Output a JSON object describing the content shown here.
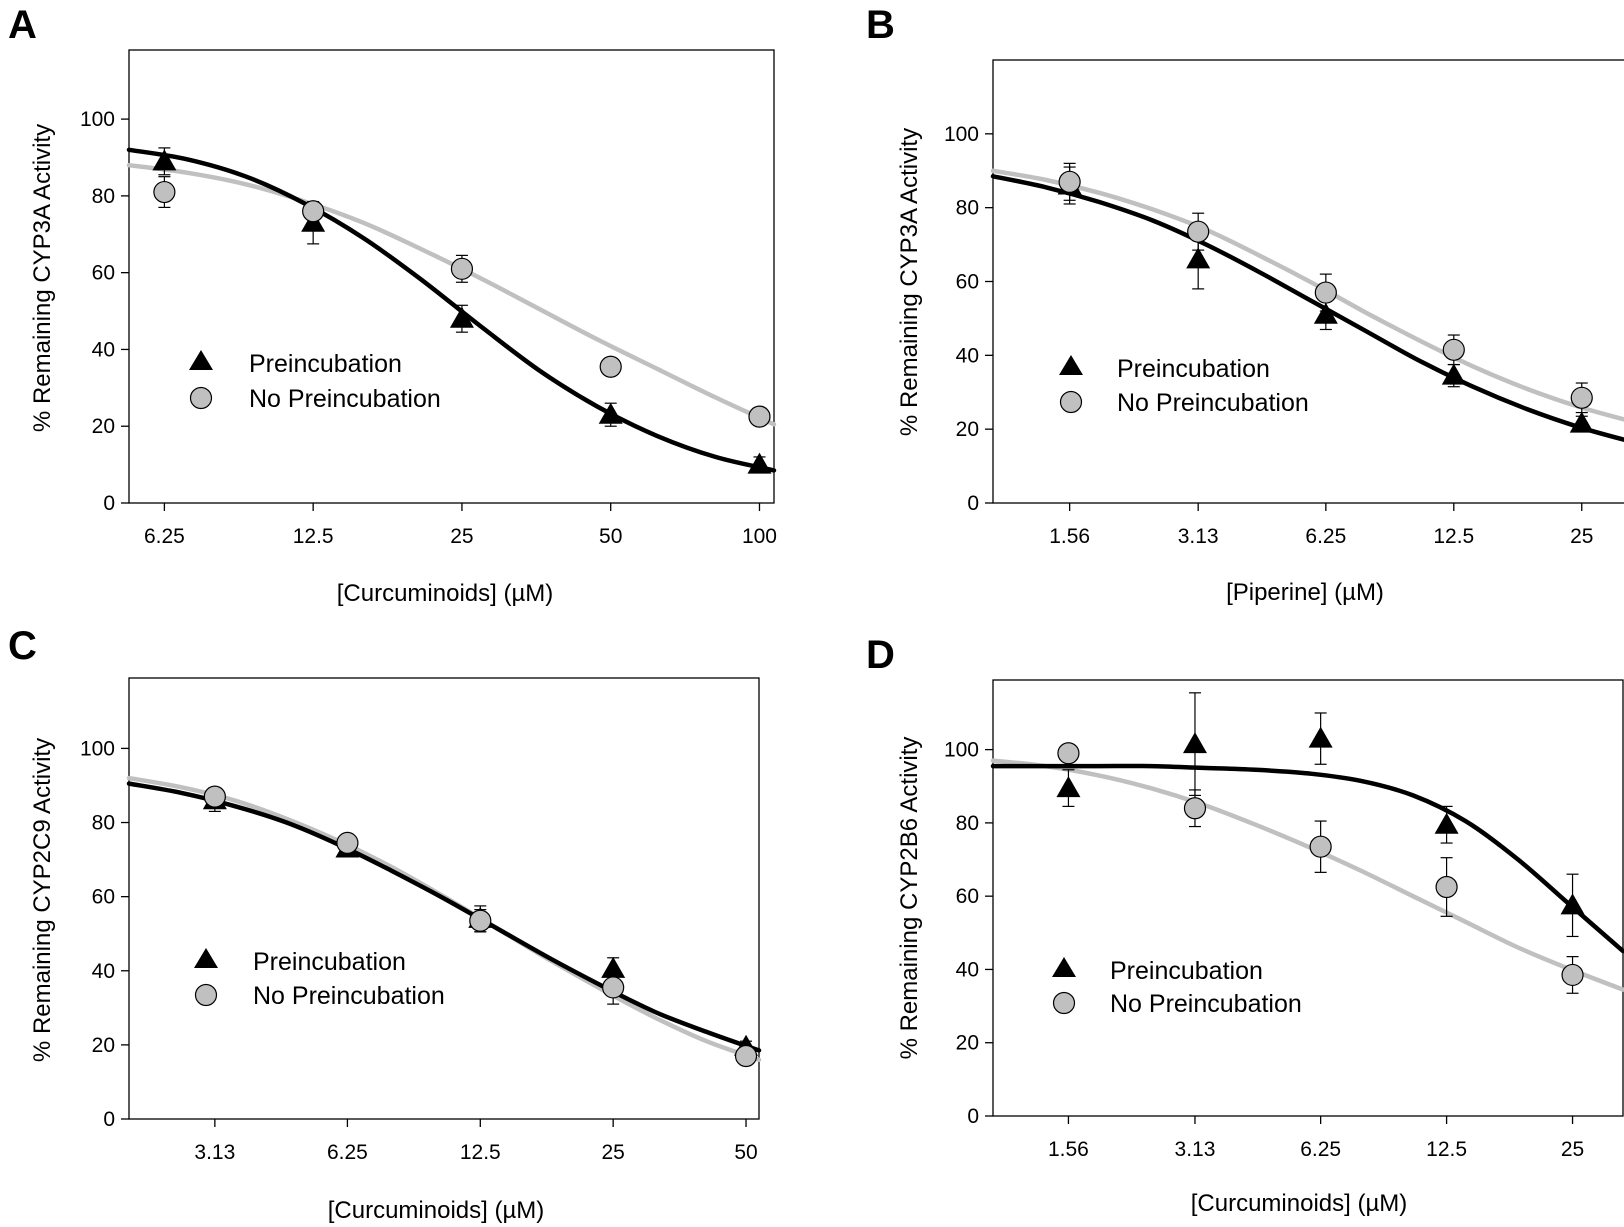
{
  "chart_data": [
    {
      "panel": "A",
      "type": "scatter",
      "xlabel": "[Curcuminoids] (µM)",
      "ylabel": "% Remaining CYP3A Activity",
      "x_scale": "log2",
      "x_ticks": [
        "6.25",
        "12.5",
        "25",
        "50",
        "100"
      ],
      "x_range": [
        5.3,
        107
      ],
      "ylim": [
        0,
        118
      ],
      "y_ticks": [
        0,
        20,
        40,
        60,
        80,
        100
      ],
      "legend_position": "center-left",
      "series": [
        {
          "name": "Preincubation",
          "marker": "triangle",
          "color": "#000000",
          "x": [
            6.25,
            12.5,
            25,
            50,
            100
          ],
          "y": [
            89,
            73,
            48,
            23,
            10
          ],
          "err": [
            3.5,
            5.5,
            3.5,
            3,
            2
          ],
          "fit": [
            92,
            89.5,
            85,
            78,
            69,
            58,
            46,
            34.5,
            25,
            17.5,
            12,
            8.5
          ]
        },
        {
          "name": "No Preincubation",
          "marker": "circle",
          "color": "#c0c0c0",
          "x": [
            6.25,
            12.5,
            25,
            50,
            100
          ],
          "y": [
            81,
            76,
            61,
            35.5,
            22.5
          ],
          "err": [
            4,
            2,
            3.5,
            1.5,
            1.5
          ],
          "fit": [
            88,
            86,
            83,
            78.5,
            73,
            66,
            58.5,
            50.5,
            42.5,
            35,
            27.5,
            20.5
          ]
        }
      ]
    },
    {
      "panel": "B",
      "type": "scatter",
      "xlabel": "[Piperine] (µM)",
      "ylabel": "% Remaining CYP3A Activity",
      "x_scale": "log2",
      "x_ticks": [
        "1.56",
        "3.13",
        "6.25",
        "12.5",
        "25"
      ],
      "x_range": [
        1.03,
        33
      ],
      "ylim": [
        0,
        120
      ],
      "y_ticks": [
        0,
        20,
        40,
        60,
        80,
        100
      ],
      "legend_position": "center-left",
      "series": [
        {
          "name": "Preincubation",
          "marker": "triangle",
          "color": "#000000",
          "x": [
            1.56,
            3.13,
            6.25,
            12.5,
            25
          ],
          "y": [
            86,
            66,
            51,
            34.5,
            21.5
          ],
          "err": [
            5,
            8,
            4,
            3,
            2
          ],
          "fit": [
            88.5,
            85.5,
            81.5,
            76.5,
            70,
            62.5,
            54.5,
            46.5,
            38.5,
            31.5,
            25.5,
            20.5,
            16.5
          ]
        },
        {
          "name": "No Preincubation",
          "marker": "circle",
          "color": "#c0c0c0",
          "x": [
            1.56,
            3.13,
            6.25,
            12.5,
            25
          ],
          "y": [
            87,
            73.5,
            57,
            41.5,
            28.5
          ],
          "err": [
            5,
            5,
            5,
            4,
            4
          ],
          "fit": [
            90,
            87.5,
            84,
            79.5,
            74,
            67,
            59.5,
            51.5,
            44,
            37,
            31,
            26,
            22
          ]
        }
      ]
    },
    {
      "panel": "C",
      "type": "scatter",
      "xlabel": "[Curcuminoids] (µM)",
      "ylabel": "% Remaining CYP2C9 Activity",
      "x_scale": "log2",
      "x_ticks": [
        "3.13",
        "6.25",
        "12.5",
        "25",
        "50"
      ],
      "x_range": [
        2.0,
        53.5
      ],
      "ylim": [
        0,
        119
      ],
      "y_ticks": [
        0,
        20,
        40,
        60,
        80,
        100
      ],
      "legend_position": "center-left",
      "series": [
        {
          "name": "Preincubation",
          "marker": "triangle",
          "color": "#000000",
          "x": [
            3.13,
            6.25,
            12.5,
            25,
            50
          ],
          "y": [
            86,
            73,
            54,
            40.5,
            19.5
          ],
          "err": [
            3,
            2,
            3.5,
            3,
            1.5
          ],
          "fit": [
            90.5,
            88,
            84.5,
            80,
            74,
            67,
            59.5,
            51.5,
            43.5,
            36,
            29,
            23.5,
            18.5
          ]
        },
        {
          "name": "No Preincubation",
          "marker": "circle",
          "color": "#c0c0c0",
          "x": [
            3.13,
            6.25,
            12.5,
            25,
            50
          ],
          "y": [
            87,
            74.5,
            53.5,
            35.5,
            17
          ],
          "err": [
            2,
            2,
            3,
            4.5,
            1.5
          ],
          "fit": [
            92,
            89.5,
            86,
            81,
            75,
            68,
            60,
            51.5,
            43,
            35,
            27.5,
            21,
            16
          ]
        }
      ]
    },
    {
      "panel": "D",
      "type": "scatter",
      "xlabel": "[Curcuminoids] (µM)",
      "ylabel": "% Remaining CYP2B6 Activity",
      "x_scale": "log2",
      "x_ticks": [
        "1.56",
        "3.13",
        "6.25",
        "12.5",
        "25"
      ],
      "x_range": [
        1.03,
        33
      ],
      "ylim": [
        0,
        119
      ],
      "y_ticks": [
        0,
        20,
        40,
        60,
        80,
        100
      ],
      "legend_position": "center-left",
      "series": [
        {
          "name": "Preincubation",
          "marker": "triangle",
          "color": "#000000",
          "x": [
            1.56,
            3.13,
            6.25,
            12.5,
            25
          ],
          "y": [
            89.5,
            101.5,
            103,
            79.5,
            57.5
          ],
          "err": [
            5,
            14,
            7,
            5,
            8.5
          ],
          "fit": [
            95.5,
            95.5,
            95.5,
            95.5,
            95,
            94.5,
            93.5,
            91.5,
            87.5,
            80.5,
            70,
            57.5,
            45
          ]
        },
        {
          "name": "No Preincubation",
          "marker": "circle",
          "color": "#c0c0c0",
          "x": [
            1.56,
            3.13,
            6.25,
            12.5,
            25
          ],
          "y": [
            99,
            84,
            73.5,
            62.5,
            38.5
          ],
          "err": [
            0,
            5,
            7,
            8,
            5
          ],
          "fit": [
            97,
            95.5,
            93,
            89.5,
            85,
            79.5,
            73.5,
            67,
            60,
            53,
            46,
            40,
            34.5
          ]
        }
      ]
    }
  ]
}
